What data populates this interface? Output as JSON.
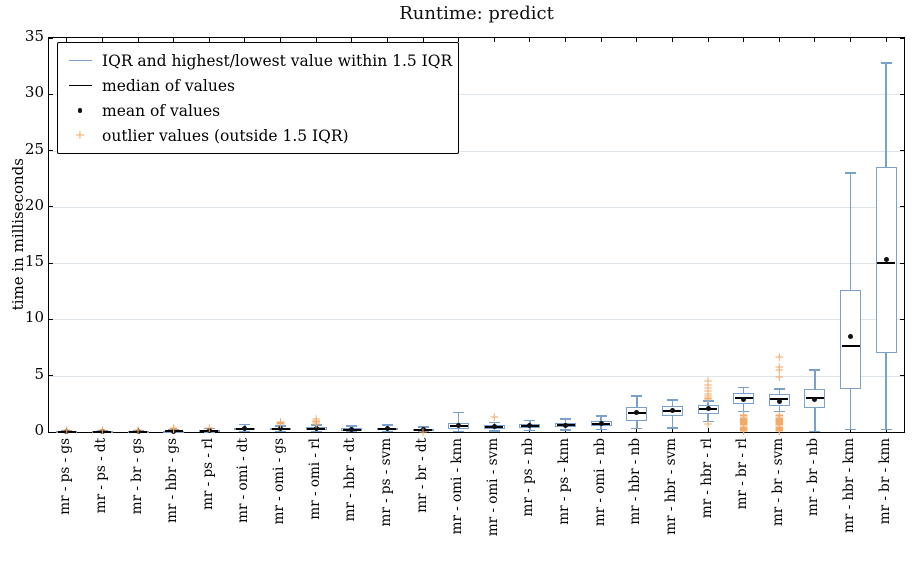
{
  "figure": {
    "title": "Runtime: predict",
    "ylabel": "time in milliseconds"
  },
  "legend": {
    "items": [
      {
        "symbol": "line-blue",
        "label": "IQR and highest/lowest value within 1.5 IQR"
      },
      {
        "symbol": "line-black",
        "label": "median of values"
      },
      {
        "symbol": "dot-black",
        "label": "mean of values"
      },
      {
        "symbol": "plus-orange",
        "label": "outlier values (outside 1.5 IQR)"
      }
    ]
  },
  "colors": {
    "box_blue": "#79a1cc",
    "outlier_orange": "#f4aa66",
    "median_black": "#000000",
    "mean_black": "#111111",
    "grid": "#dde4ea",
    "axis": "#000000"
  },
  "chart_data": {
    "type": "boxplot",
    "title": "Runtime: predict",
    "xlabel": "",
    "ylabel": "time in milliseconds",
    "ylim": [
      0,
      35
    ],
    "yticks": [
      0,
      5,
      10,
      15,
      20,
      25,
      30,
      35
    ],
    "grid": true,
    "legend_position": "upper left",
    "x_tick_rotation": 90,
    "categories": [
      "mr - ps - gs",
      "mr - ps - dt",
      "mr - br - gs",
      "mr - hbr - gs",
      "mr - ps - rl",
      "mr - omi - dt",
      "mr - omi - gs",
      "mr - omi - rl",
      "mr - hbr - dt",
      "mr - ps - svm",
      "mr - br - dt",
      "mr - omi - knn",
      "mr - omi - svm",
      "mr - ps - nb",
      "mr - ps - knn",
      "mr - omi - nb",
      "mr - hbr - nb",
      "mr - hbr - svm",
      "mr - hbr - rl",
      "mr - br - rl",
      "mr - br - svm",
      "mr - br - nb",
      "mr - hbr - knn",
      "mr - br - knn"
    ],
    "boxes": [
      {
        "label": "mr - ps - gs",
        "whisker_low": 0.0,
        "q1": 0.01,
        "median": 0.03,
        "q3": 0.06,
        "whisker_high": 0.12,
        "mean": 0.04,
        "outliers": [
          0.2
        ]
      },
      {
        "label": "mr - ps - dt",
        "whisker_low": 0.0,
        "q1": 0.01,
        "median": 0.03,
        "q3": 0.06,
        "whisker_high": 0.13,
        "mean": 0.04,
        "outliers": [
          0.2
        ]
      },
      {
        "label": "mr - br - gs",
        "whisker_low": 0.0,
        "q1": 0.02,
        "median": 0.04,
        "q3": 0.07,
        "whisker_high": 0.14,
        "mean": 0.05,
        "outliers": [
          0.22
        ]
      },
      {
        "label": "mr - hbr - gs",
        "whisker_low": 0.0,
        "q1": 0.02,
        "median": 0.05,
        "q3": 0.09,
        "whisker_high": 0.17,
        "mean": 0.06,
        "outliers": [
          0.25,
          0.32
        ]
      },
      {
        "label": "mr - ps - rl",
        "whisker_low": 0.01,
        "q1": 0.06,
        "median": 0.12,
        "q3": 0.18,
        "whisker_high": 0.3,
        "mean": 0.13,
        "outliers": [
          0.38
        ]
      },
      {
        "label": "mr - omi - dt",
        "whisker_low": 0.04,
        "q1": 0.15,
        "median": 0.24,
        "q3": 0.36,
        "whisker_high": 0.68,
        "mean": 0.27,
        "outliers": []
      },
      {
        "label": "mr - omi - gs",
        "whisker_low": 0.04,
        "q1": 0.15,
        "median": 0.25,
        "q3": 0.38,
        "whisker_high": 0.55,
        "mean": 0.28,
        "outliers": [
          0.68,
          0.8,
          0.92
        ]
      },
      {
        "label": "mr - omi - rl",
        "whisker_low": 0.05,
        "q1": 0.2,
        "median": 0.3,
        "q3": 0.44,
        "whisker_high": 0.62,
        "mean": 0.33,
        "outliers": [
          0.75,
          0.88,
          1.0,
          1.12
        ]
      },
      {
        "label": "mr - hbr - dt",
        "whisker_low": 0.03,
        "q1": 0.13,
        "median": 0.22,
        "q3": 0.33,
        "whisker_high": 0.55,
        "mean": 0.24,
        "outliers": []
      },
      {
        "label": "mr - ps - svm",
        "whisker_low": 0.05,
        "q1": 0.17,
        "median": 0.27,
        "q3": 0.38,
        "whisker_high": 0.6,
        "mean": 0.28,
        "outliers": []
      },
      {
        "label": "mr - br - dt",
        "whisker_low": 0.05,
        "q1": 0.1,
        "median": 0.18,
        "q3": 0.28,
        "whisker_high": 0.45,
        "mean": 0.2,
        "outliers": [
          0.02
        ]
      },
      {
        "label": "mr - omi - knn",
        "whisker_low": 0.06,
        "q1": 0.28,
        "median": 0.5,
        "q3": 0.78,
        "whisker_high": 1.75,
        "mean": 0.55,
        "outliers": []
      },
      {
        "label": "mr - omi - svm",
        "whisker_low": 0.1,
        "q1": 0.3,
        "median": 0.45,
        "q3": 0.65,
        "whisker_high": 0.85,
        "mean": 0.48,
        "outliers": [
          1.3
        ]
      },
      {
        "label": "mr - ps - nb",
        "whisker_low": 0.15,
        "q1": 0.37,
        "median": 0.53,
        "q3": 0.7,
        "whisker_high": 1.0,
        "mean": 0.55,
        "outliers": []
      },
      {
        "label": "mr - ps - knn",
        "whisker_low": 0.18,
        "q1": 0.42,
        "median": 0.6,
        "q3": 0.8,
        "whisker_high": 1.15,
        "mean": 0.62,
        "outliers": []
      },
      {
        "label": "mr - omi - nb",
        "whisker_low": 0.2,
        "q1": 0.5,
        "median": 0.7,
        "q3": 0.95,
        "whisker_high": 1.4,
        "mean": 0.73,
        "outliers": []
      },
      {
        "label": "mr - hbr - nb",
        "whisker_low": 0.3,
        "q1": 1.0,
        "median": 1.7,
        "q3": 2.2,
        "whisker_high": 3.2,
        "mean": 1.72,
        "outliers": []
      },
      {
        "label": "mr - hbr - svm",
        "whisker_low": 0.35,
        "q1": 1.45,
        "median": 1.85,
        "q3": 2.3,
        "whisker_high": 2.85,
        "mean": 1.9,
        "outliers": []
      },
      {
        "label": "mr - hbr - rl",
        "whisker_low": 0.95,
        "q1": 1.6,
        "median": 2.05,
        "q3": 2.4,
        "whisker_high": 2.75,
        "mean": 2.1,
        "outliers": [
          0.7,
          2.9,
          3.05,
          3.2,
          3.4,
          3.6,
          3.9,
          4.2,
          4.55
        ]
      },
      {
        "label": "mr - br - rl",
        "whisker_low": 1.8,
        "q1": 2.5,
        "median": 3.0,
        "q3": 3.5,
        "whisker_high": 3.95,
        "mean": 2.85,
        "outliers": [
          0.08,
          0.18,
          0.28,
          0.38,
          0.48,
          0.58,
          0.68,
          0.78,
          0.88,
          0.98,
          1.08,
          1.18,
          1.28,
          1.38,
          1.48
        ]
      },
      {
        "label": "mr - br - svm",
        "whisker_low": 1.8,
        "q1": 2.3,
        "median": 2.9,
        "q3": 3.4,
        "whisker_high": 3.8,
        "mean": 2.75,
        "outliers": [
          4.85,
          5.55,
          5.8,
          6.7,
          0.08,
          0.18,
          0.28,
          0.38,
          0.48,
          0.58,
          0.68,
          0.78,
          0.88,
          0.98,
          1.08,
          1.18,
          1.28,
          1.38,
          1.48
        ]
      },
      {
        "label": "mr - br - nb",
        "whisker_low": 0.05,
        "q1": 2.1,
        "median": 3.05,
        "q3": 3.8,
        "whisker_high": 5.5,
        "mean": 2.85,
        "outliers": []
      },
      {
        "label": "mr - hbr - knn",
        "whisker_low": 0.2,
        "q1": 3.8,
        "median": 7.6,
        "q3": 12.6,
        "whisker_high": 23.0,
        "mean": 8.5,
        "outliers": []
      },
      {
        "label": "mr - br - knn",
        "whisker_low": 0.2,
        "q1": 7.0,
        "median": 15.0,
        "q3": 23.5,
        "whisker_high": 32.8,
        "mean": 15.3,
        "outliers": []
      }
    ]
  }
}
